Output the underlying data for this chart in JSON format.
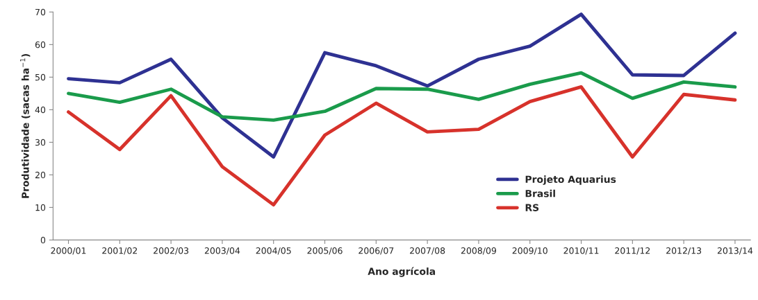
{
  "chart_data": {
    "type": "line",
    "xlabel": "Ano agrícola",
    "ylabel": "Produtividade (sacas ha$^{−1}$)",
    "categories": [
      "2000/01",
      "2001/02",
      "2002/03",
      "2003/04",
      "2004/05",
      "2005/06",
      "2006/07",
      "2007/08",
      "2008/09",
      "2009/10",
      "2010/11",
      "2011/12",
      "2012/13",
      "2013/14"
    ],
    "series": [
      {
        "name": "Projeto Aquarius",
        "color": "#2e3192",
        "values": [
          49.5,
          48.3,
          55.5,
          37.5,
          25.5,
          57.5,
          53.5,
          47.3,
          55.5,
          59.5,
          69.3,
          50.7,
          50.5,
          63.5
        ]
      },
      {
        "name": "Brasil",
        "color": "#1a9b4b",
        "values": [
          45,
          42.3,
          46.3,
          37.8,
          36.8,
          39.5,
          46.5,
          46.3,
          43.2,
          47.8,
          51.3,
          43.5,
          48.5,
          47
        ]
      },
      {
        "name": "RS",
        "color": "#d7322b",
        "values": [
          39.3,
          27.8,
          44.3,
          22.5,
          10.8,
          32.2,
          42,
          33.2,
          34,
          42.5,
          47,
          25.5,
          44.7,
          43
        ]
      }
    ],
    "ylim": [
      0,
      70
    ],
    "yticks": [
      0,
      10,
      20,
      30,
      40,
      50,
      60,
      70
    ],
    "grid": false,
    "legend": "lower right",
    "marker": "none",
    "line_style": "solid"
  }
}
